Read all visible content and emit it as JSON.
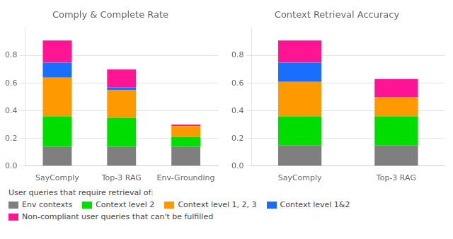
{
  "chart_data": [
    {
      "type": "bar",
      "title": "Comply & Complete Rate",
      "stacked": true,
      "grid": true,
      "legend": "bottom",
      "legend_title": "User queries that require retrieval of:",
      "categories": [
        "SayComply",
        "Top-3 RAG",
        "Env-Grounding"
      ],
      "series": [
        {
          "name": "Env contexts",
          "color": "#7f7f7f",
          "values": [
            0.14,
            0.14,
            0.14
          ]
        },
        {
          "name": "Context level 2",
          "color": "#00dd00",
          "values": [
            0.22,
            0.21,
            0.07
          ]
        },
        {
          "name": "Context level 1, 2, 3",
          "color": "#ff9900",
          "values": [
            0.28,
            0.2,
            0.08
          ]
        },
        {
          "name": "Context level 1&2",
          "color": "#1a6eff",
          "values": [
            0.11,
            0.02,
            0.0
          ]
        },
        {
          "name": "Non-compliant user queries that can't be fulfilled",
          "color": "#ff1493",
          "values": [
            0.16,
            0.13,
            0.01
          ]
        }
      ],
      "ylim": [
        0,
        1.0
      ],
      "yticks": [
        {
          "value": 0,
          "label": "0.0"
        },
        0.2,
        0.4,
        0.6,
        0.8
      ]
    },
    {
      "type": "bar",
      "title": "Context Retrieval Accuracy",
      "stacked": true,
      "grid": true,
      "legend": "bottom",
      "legend_title": "User queries that require retrieval of:",
      "categories": [
        "SayComply",
        "Top-3 RAG"
      ],
      "series": [
        {
          "name": "Env contexts",
          "color": "#7f7f7f",
          "values": [
            0.15,
            0.15
          ]
        },
        {
          "name": "Context level 2",
          "color": "#00dd00",
          "values": [
            0.21,
            0.21
          ]
        },
        {
          "name": "Context level 1, 2, 3",
          "color": "#ff9900",
          "values": [
            0.25,
            0.14
          ]
        },
        {
          "name": "Context level 1&2",
          "color": "#1a6eff",
          "values": [
            0.14,
            0.0
          ]
        },
        {
          "name": "Non-compliant user queries that can't be fulfilled",
          "color": "#ff1493",
          "values": [
            0.16,
            0.13
          ]
        }
      ],
      "ylim": [
        0,
        1.0
      ],
      "yticks": [
        {
          "value": 0,
          "label": "0.0"
        },
        0.2,
        0.4,
        0.6,
        0.8
      ]
    }
  ]
}
